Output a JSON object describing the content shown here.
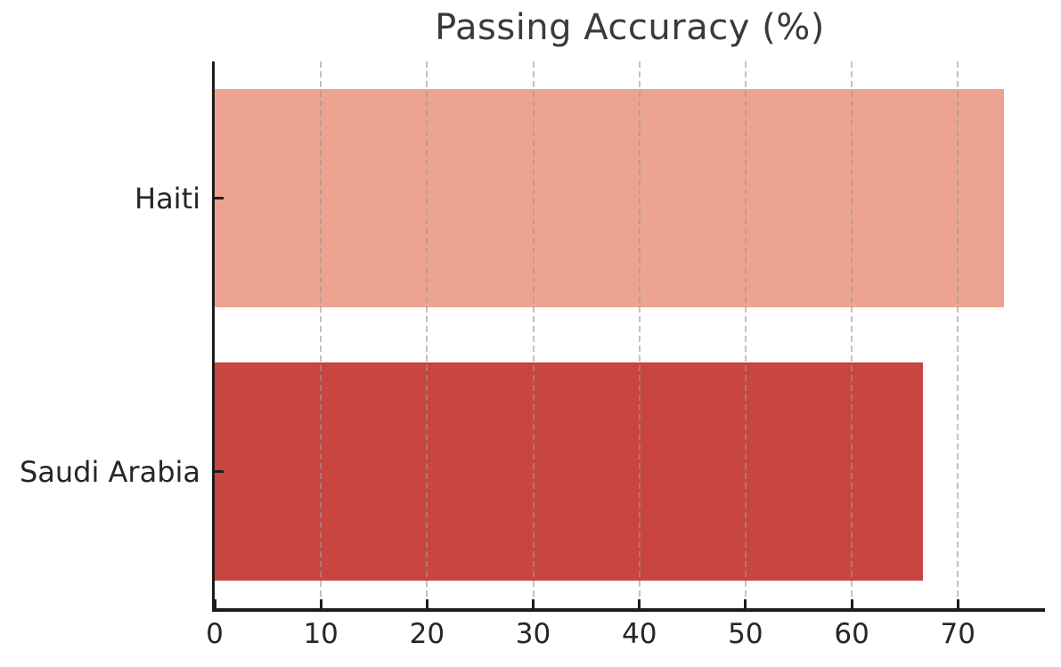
{
  "chart_data": {
    "type": "bar",
    "orientation": "horizontal",
    "title": "Passing Accuracy (%)",
    "categories": [
      "Haiti",
      "Saudi Arabia"
    ],
    "values": [
      74.3,
      66.7
    ],
    "bar_colors": [
      "#ECA490",
      "#C84541"
    ],
    "xlabel": "",
    "ylabel": "",
    "xlim": [
      0,
      78.2
    ],
    "xticks": [
      0,
      10,
      20,
      30,
      40,
      50,
      60,
      70
    ],
    "xtick_labels": [
      "0",
      "10",
      "20",
      "30",
      "40",
      "50",
      "60",
      "70"
    ],
    "grid": {
      "axis": "x",
      "style": "dashed",
      "color": "#999999",
      "opacity": 0.6,
      "drawn_over_bars": true
    },
    "legend": "none",
    "background": "#ffffff",
    "axis_color": "#1c1c1c",
    "tick_label_color": "#262626",
    "title_color": "#3a3a3a"
  }
}
